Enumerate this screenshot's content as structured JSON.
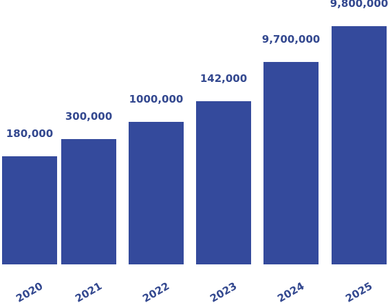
{
  "chart_data": {
    "type": "bar",
    "categories": [
      "2020",
      "2021",
      "2022",
      "2023",
      "2024",
      "2025"
    ],
    "data_labels": [
      "180,000",
      "300,000",
      "1000,000",
      "142,000",
      "9,700,000",
      "9,800,000"
    ],
    "bar_color": "#344a9c",
    "label_color": "#33488f",
    "axis": "none",
    "grid": false,
    "legend": "none"
  }
}
